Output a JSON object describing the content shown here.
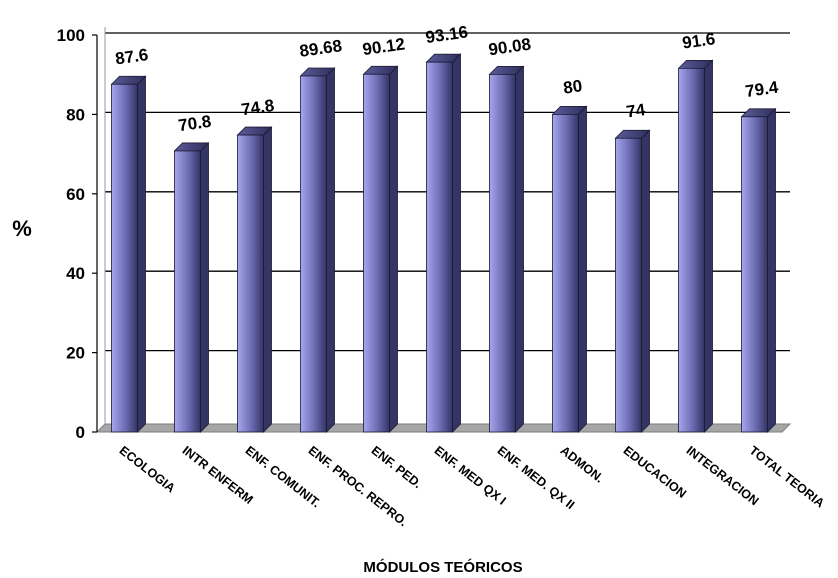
{
  "chart_data": {
    "type": "bar",
    "categories": [
      "ECOLOGIA",
      "INTR ENFERM",
      "ENF. COMUNIT.",
      "ENF. PROC. REPRO.",
      "ENF. PED.",
      "ENF. MED QX I",
      "ENF. MED. QX II",
      "ADMON.",
      "EDUCACION",
      "INTEGRACION",
      "TOTAL TEORIA"
    ],
    "values": [
      87.6,
      70.8,
      74.8,
      89.68,
      90.12,
      93.16,
      90.08,
      80,
      74,
      91.6,
      79.4
    ],
    "data_labels": [
      "87.6",
      "70.8",
      "74.8",
      "89.68",
      "90.12",
      "93.16",
      "90.08",
      "80",
      "74",
      "91.6",
      "79.4"
    ],
    "ylabel": "%",
    "xlabel": "MÓDULOS TEÓRICOS",
    "ylim": [
      0,
      100
    ],
    "yticks": [
      0,
      20,
      40,
      60,
      80,
      100
    ],
    "grid": true,
    "legend": "none",
    "colors": {
      "bar_light": "#a6a6ee",
      "bar_dark": "#343465",
      "grid": "#000000",
      "floor": "#a6a6a6"
    }
  }
}
